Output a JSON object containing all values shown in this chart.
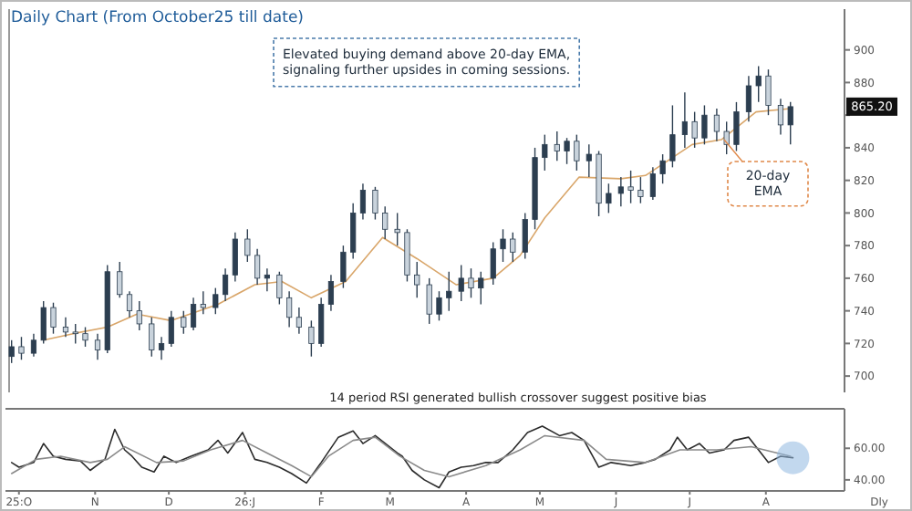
{
  "chart_data": [
    {
      "type": "candlestick",
      "title": "Daily Chart (From October25 till date)",
      "color": "#2c3e50",
      "x": [
        "2025-09-28",
        "2025-10-02",
        "2025-10-07",
        "2025-10-11",
        "2025-10-15",
        "2025-10-20",
        "2025-10-24",
        "2025-10-28",
        "2025-11-02",
        "2025-11-06",
        "2025-11-11",
        "2025-11-15",
        "2025-11-19",
        "2025-11-24",
        "2025-11-28",
        "2025-12-02",
        "2025-12-07",
        "2025-12-11",
        "2025-12-15",
        "2025-12-20",
        "2025-12-24",
        "2025-12-28",
        "2026-01-02",
        "2026-01-06",
        "2026-01-10",
        "2026-01-15",
        "2026-01-19",
        "2026-01-23",
        "2026-01-28",
        "2026-02-01",
        "2026-02-05",
        "2026-02-10",
        "2026-02-14",
        "2026-02-18",
        "2026-02-23",
        "2026-02-27",
        "2026-03-04",
        "2026-03-08",
        "2026-03-12",
        "2026-03-17",
        "2026-03-21",
        "2026-03-25",
        "2026-03-30",
        "2026-04-03",
        "2026-04-07",
        "2026-04-12",
        "2026-04-16",
        "2026-04-20",
        "2026-04-25",
        "2026-04-29",
        "2026-05-03",
        "2026-05-08",
        "2026-05-12",
        "2026-05-16",
        "2026-05-21",
        "2026-05-25",
        "2026-05-29",
        "2026-06-03",
        "2026-06-07",
        "2026-06-11",
        "2026-06-16",
        "2026-06-20",
        "2026-06-24",
        "2026-06-29",
        "2026-07-03",
        "2026-07-07",
        "2026-07-12",
        "2026-07-16",
        "2026-07-20",
        "2026-07-25",
        "2026-07-29",
        "2026-08-02",
        "2026-08-07",
        "2026-08-11"
      ],
      "ohlc": [
        [
          712,
          722,
          708,
          718
        ],
        [
          718,
          724,
          710,
          714
        ],
        [
          714,
          726,
          712,
          722
        ],
        [
          722,
          746,
          720,
          742
        ],
        [
          742,
          745,
          726,
          730
        ],
        [
          730,
          736,
          724,
          727
        ],
        [
          727,
          732,
          720,
          726
        ],
        [
          726,
          730,
          718,
          722
        ],
        [
          722,
          726,
          710,
          716
        ],
        [
          716,
          768,
          714,
          764
        ],
        [
          764,
          770,
          748,
          750
        ],
        [
          750,
          752,
          736,
          740
        ],
        [
          740,
          746,
          728,
          732
        ],
        [
          732,
          736,
          712,
          716
        ],
        [
          716,
          724,
          710,
          720
        ],
        [
          720,
          740,
          718,
          736
        ],
        [
          736,
          740,
          726,
          730
        ],
        [
          730,
          748,
          728,
          744
        ],
        [
          744,
          752,
          738,
          742
        ],
        [
          742,
          754,
          738,
          750
        ],
        [
          750,
          766,
          746,
          762
        ],
        [
          762,
          788,
          758,
          784
        ],
        [
          784,
          790,
          770,
          774
        ],
        [
          774,
          778,
          756,
          760
        ],
        [
          760,
          766,
          752,
          762
        ],
        [
          762,
          764,
          744,
          748
        ],
        [
          748,
          752,
          730,
          736
        ],
        [
          736,
          742,
          726,
          730
        ],
        [
          730,
          734,
          712,
          720
        ],
        [
          720,
          748,
          718,
          744
        ],
        [
          744,
          762,
          740,
          758
        ],
        [
          758,
          780,
          754,
          776
        ],
        [
          776,
          806,
          772,
          800
        ],
        [
          800,
          818,
          796,
          814
        ],
        [
          814,
          816,
          796,
          800
        ],
        [
          800,
          804,
          784,
          790
        ],
        [
          790,
          800,
          780,
          788
        ],
        [
          788,
          790,
          758,
          762
        ],
        [
          762,
          770,
          748,
          756
        ],
        [
          756,
          760,
          732,
          738
        ],
        [
          738,
          752,
          734,
          748
        ],
        [
          748,
          764,
          740,
          752
        ],
        [
          752,
          768,
          746,
          760
        ],
        [
          760,
          766,
          748,
          754
        ],
        [
          754,
          764,
          744,
          760
        ],
        [
          760,
          782,
          756,
          778
        ],
        [
          778,
          790,
          770,
          784
        ],
        [
          784,
          788,
          770,
          776
        ],
        [
          776,
          800,
          772,
          796
        ],
        [
          796,
          840,
          790,
          834
        ],
        [
          834,
          848,
          826,
          842
        ],
        [
          842,
          850,
          832,
          838
        ],
        [
          838,
          846,
          830,
          844
        ],
        [
          844,
          848,
          826,
          832
        ],
        [
          832,
          842,
          822,
          836
        ],
        [
          836,
          838,
          798,
          806
        ],
        [
          806,
          818,
          800,
          812
        ],
        [
          812,
          822,
          804,
          816
        ],
        [
          816,
          826,
          806,
          814
        ],
        [
          814,
          822,
          806,
          810
        ],
        [
          810,
          828,
          808,
          824
        ],
        [
          824,
          836,
          818,
          832
        ],
        [
          832,
          866,
          828,
          848
        ],
        [
          848,
          874,
          840,
          856
        ],
        [
          856,
          862,
          840,
          846
        ],
        [
          846,
          866,
          842,
          860
        ],
        [
          860,
          864,
          844,
          850
        ],
        [
          850,
          856,
          836,
          842
        ],
        [
          842,
          868,
          838,
          862
        ],
        [
          862,
          884,
          856,
          878
        ],
        [
          878,
          890,
          868,
          884
        ],
        [
          884,
          888,
          860,
          866
        ],
        [
          866,
          870,
          848,
          854
        ],
        [
          854,
          868,
          842,
          865.2
        ]
      ],
      "series": [
        {
          "type": "line",
          "color": "#d9a66a",
          "x": [
            "2025-10-11",
            "2025-10-23",
            "2025-11-06",
            "2025-11-18",
            "2025-12-02",
            "2025-12-21",
            "2026-01-05",
            "2026-01-16",
            "2026-01-28",
            "2026-02-11",
            "2026-02-26",
            "2026-03-12",
            "2026-03-28",
            "2026-04-12",
            "2026-04-23",
            "2026-05-03",
            "2026-05-17",
            "2026-06-03",
            "2026-06-13",
            "2026-07-02",
            "2026-07-14",
            "2026-07-28",
            "2026-08-11"
          ],
          "values": [
            722,
            726,
            730,
            738,
            734,
            744,
            756,
            758,
            748,
            758,
            785,
            772,
            756,
            760,
            774,
            797,
            822,
            821,
            823,
            842,
            845,
            862,
            864
          ]
        }
      ],
      "xlim": [
        "2025-09-27",
        "2026-09-02"
      ],
      "ylim": [
        690,
        925
      ],
      "yticks": [
        700,
        720,
        740,
        760,
        780,
        800,
        820,
        840,
        {
          "value": 860,
          "label": null
        },
        880,
        900
      ],
      "tick_labels": "y",
      "annotations": [
        "Elevated buying demand above 20-day EMA, signaling further upsides in coming sessions.",
        {
          "text": "20-day EMA",
          "x": "2026-07-15",
          "y": 845
        },
        {
          "text": "865.20",
          "y": 865.2
        }
      ]
    },
    {
      "type": "line",
      "title": "14 period RSI generated bullish crossover suggest positive bias",
      "xlabel": "Dly",
      "series": [
        {
          "color": "#2b2b2b",
          "x": [
            "2025-09-28",
            "2025-10-01",
            "2025-10-07",
            "2025-10-11",
            "2025-10-15",
            "2025-10-20",
            "2025-10-26",
            "2025-10-30",
            "2025-11-05",
            "2025-11-09",
            "2025-11-13",
            "2025-11-16",
            "2025-11-20",
            "2025-11-25",
            "2025-11-29",
            "2025-12-04",
            "2025-12-10",
            "2025-12-17",
            "2025-12-21",
            "2025-12-25",
            "2025-12-31",
            "2026-01-05",
            "2026-01-10",
            "2026-01-15",
            "2026-01-20",
            "2026-01-26",
            "2026-02-01",
            "2026-02-08",
            "2026-02-14",
            "2026-02-18",
            "2026-02-23",
            "2026-03-04",
            "2026-03-06",
            "2026-03-10",
            "2026-03-15",
            "2026-03-21",
            "2026-03-25",
            "2026-03-30",
            "2026-04-04",
            "2026-04-09",
            "2026-04-14",
            "2026-04-20",
            "2026-04-26",
            "2026-05-02",
            "2026-05-09",
            "2026-05-14",
            "2026-05-19",
            "2026-05-25",
            "2026-05-30",
            "2026-06-07",
            "2026-06-13",
            "2026-06-17",
            "2026-06-23",
            "2026-06-26",
            "2026-06-30",
            "2026-07-05",
            "2026-07-09",
            "2026-07-15",
            "2026-07-19",
            "2026-07-25",
            "2026-07-29",
            "2026-08-02",
            "2026-08-07",
            "2026-08-12"
          ],
          "values": [
            51,
            48,
            51,
            63,
            55,
            53,
            52,
            46,
            53,
            72,
            59,
            55,
            48,
            45,
            55,
            51,
            55,
            59,
            65,
            57,
            70,
            53,
            51,
            48,
            44,
            38,
            51,
            67,
            71,
            63,
            68,
            57,
            55,
            46,
            40,
            35,
            45,
            48,
            49,
            51,
            51,
            59,
            70,
            74,
            68,
            70,
            65,
            48,
            51,
            49,
            51,
            53,
            59,
            67,
            59,
            63,
            57,
            59,
            65,
            67,
            59,
            51,
            55,
            54
          ]
        },
        {
          "color": "#8a8a8a",
          "x": [
            "2025-09-28",
            "2025-10-08",
            "2025-10-18",
            "2025-10-30",
            "2025-11-06",
            "2025-11-13",
            "2025-11-26",
            "2025-12-07",
            "2025-12-18",
            "2025-12-31",
            "2026-01-10",
            "2026-01-20",
            "2026-01-28",
            "2026-02-04",
            "2026-02-14",
            "2026-02-23",
            "2026-03-05",
            "2026-03-15",
            "2026-03-25",
            "2026-04-09",
            "2026-04-23",
            "2026-05-03",
            "2026-05-19",
            "2026-05-28",
            "2026-06-13",
            "2026-06-27",
            "2026-07-12",
            "2026-07-26",
            "2026-08-11"
          ],
          "values": [
            44,
            53,
            55,
            51,
            53,
            61,
            51,
            52,
            59,
            65,
            57,
            49,
            42,
            55,
            65,
            67,
            55,
            46,
            42,
            49,
            59,
            68,
            65,
            53,
            51,
            59,
            59,
            61,
            55
          ]
        }
      ],
      "xlim": [
        "2025-09-27",
        "2026-09-02"
      ],
      "ylim": [
        33,
        85
      ],
      "xticks": [
        {
          "value": "2025-10-01",
          "label": "25:O"
        },
        {
          "value": "2025-11-01",
          "label": "N"
        },
        {
          "value": "2025-12-01",
          "label": "D"
        },
        {
          "value": "2026-01-01",
          "label": "26:J"
        },
        {
          "value": "2026-02-01",
          "label": "F"
        },
        {
          "value": "2026-03-01",
          "label": "M"
        },
        {
          "value": "2026-04-01",
          "label": "A"
        },
        {
          "value": "2026-05-01",
          "label": "M"
        },
        {
          "value": "2026-06-01",
          "label": "J"
        },
        {
          "value": "2026-07-01",
          "label": "J"
        },
        {
          "value": "2026-08-01",
          "label": "A"
        }
      ],
      "yticks": [
        {
          "value": 40,
          "label": "40.00"
        },
        {
          "value": 60,
          "label": "60.00"
        }
      ]
    }
  ]
}
